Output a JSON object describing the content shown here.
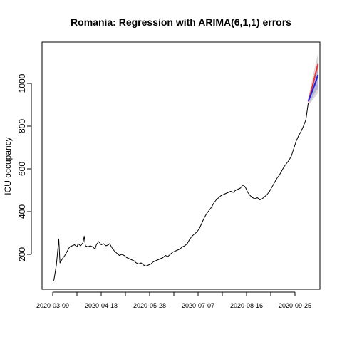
{
  "chart_data": {
    "type": "line",
    "title": "Romania: Regression with ARIMA(6,1,1) errors",
    "xlabel": "",
    "ylabel": "ICU occupancy",
    "x_tick_labels": [
      "2020-03-09",
      "2020-04-18",
      "2020-05-28",
      "2020-07-07",
      "2020-08-16",
      "2020-09-25"
    ],
    "y_ticks": [
      200,
      400,
      600,
      800,
      1000
    ],
    "xlim": [
      "2020-03-09",
      "2020-10-06"
    ],
    "ylim": [
      70,
      1140
    ],
    "grid": false,
    "legend": "none",
    "series": [
      {
        "color": "#000000",
        "points": [
          [
            "2020-03-09",
            75
          ],
          [
            "2020-03-10",
            80
          ],
          [
            "2020-03-12",
            150
          ],
          [
            "2020-03-13",
            210
          ],
          [
            "2020-03-14",
            270
          ],
          [
            "2020-03-15",
            160
          ],
          [
            "2020-03-17",
            180
          ],
          [
            "2020-03-19",
            195
          ],
          [
            "2020-03-21",
            215
          ],
          [
            "2020-03-23",
            235
          ],
          [
            "2020-03-25",
            240
          ],
          [
            "2020-03-27",
            245
          ],
          [
            "2020-03-29",
            235
          ],
          [
            "2020-03-30",
            250
          ],
          [
            "2020-04-01",
            240
          ],
          [
            "2020-04-03",
            255
          ],
          [
            "2020-04-04",
            285
          ],
          [
            "2020-04-05",
            240
          ],
          [
            "2020-04-07",
            235
          ],
          [
            "2020-04-09",
            240
          ],
          [
            "2020-04-11",
            235
          ],
          [
            "2020-04-13",
            225
          ],
          [
            "2020-04-14",
            245
          ],
          [
            "2020-04-16",
            260
          ],
          [
            "2020-04-18",
            245
          ],
          [
            "2020-04-20",
            250
          ],
          [
            "2020-04-22",
            240
          ],
          [
            "2020-04-24",
            245
          ],
          [
            "2020-04-25",
            250
          ],
          [
            "2020-04-27",
            230
          ],
          [
            "2020-04-29",
            215
          ],
          [
            "2020-05-01",
            205
          ],
          [
            "2020-05-03",
            195
          ],
          [
            "2020-05-05",
            200
          ],
          [
            "2020-05-07",
            195
          ],
          [
            "2020-05-09",
            185
          ],
          [
            "2020-05-11",
            180
          ],
          [
            "2020-05-13",
            175
          ],
          [
            "2020-05-15",
            170
          ],
          [
            "2020-05-17",
            160
          ],
          [
            "2020-05-19",
            155
          ],
          [
            "2020-05-21",
            160
          ],
          [
            "2020-05-23",
            150
          ],
          [
            "2020-05-25",
            145
          ],
          [
            "2020-05-27",
            150
          ],
          [
            "2020-05-29",
            155
          ],
          [
            "2020-05-31",
            165
          ],
          [
            "2020-06-02",
            170
          ],
          [
            "2020-06-04",
            175
          ],
          [
            "2020-06-06",
            180
          ],
          [
            "2020-06-08",
            185
          ],
          [
            "2020-06-10",
            195
          ],
          [
            "2020-06-12",
            190
          ],
          [
            "2020-06-14",
            200
          ],
          [
            "2020-06-16",
            210
          ],
          [
            "2020-06-18",
            215
          ],
          [
            "2020-06-20",
            220
          ],
          [
            "2020-06-22",
            225
          ],
          [
            "2020-06-24",
            235
          ],
          [
            "2020-06-26",
            240
          ],
          [
            "2020-06-28",
            250
          ],
          [
            "2020-06-30",
            270
          ],
          [
            "2020-07-02",
            285
          ],
          [
            "2020-07-04",
            295
          ],
          [
            "2020-07-06",
            305
          ],
          [
            "2020-07-08",
            320
          ],
          [
            "2020-07-10",
            345
          ],
          [
            "2020-07-12",
            370
          ],
          [
            "2020-07-14",
            390
          ],
          [
            "2020-07-16",
            405
          ],
          [
            "2020-07-18",
            420
          ],
          [
            "2020-07-20",
            440
          ],
          [
            "2020-07-22",
            455
          ],
          [
            "2020-07-24",
            465
          ],
          [
            "2020-07-26",
            475
          ],
          [
            "2020-07-28",
            480
          ],
          [
            "2020-07-30",
            485
          ],
          [
            "2020-08-01",
            490
          ],
          [
            "2020-08-03",
            495
          ],
          [
            "2020-08-05",
            490
          ],
          [
            "2020-08-07",
            500
          ],
          [
            "2020-08-09",
            505
          ],
          [
            "2020-08-11",
            510
          ],
          [
            "2020-08-13",
            525
          ],
          [
            "2020-08-15",
            515
          ],
          [
            "2020-08-17",
            490
          ],
          [
            "2020-08-19",
            475
          ],
          [
            "2020-08-21",
            465
          ],
          [
            "2020-08-23",
            460
          ],
          [
            "2020-08-25",
            465
          ],
          [
            "2020-08-27",
            455
          ],
          [
            "2020-08-29",
            460
          ],
          [
            "2020-08-31",
            470
          ],
          [
            "2020-09-02",
            480
          ],
          [
            "2020-09-04",
            495
          ],
          [
            "2020-09-06",
            515
          ],
          [
            "2020-09-08",
            535
          ],
          [
            "2020-09-10",
            555
          ],
          [
            "2020-09-12",
            570
          ],
          [
            "2020-09-14",
            590
          ],
          [
            "2020-09-16",
            610
          ],
          [
            "2020-09-18",
            625
          ],
          [
            "2020-09-20",
            640
          ],
          [
            "2020-09-22",
            660
          ],
          [
            "2020-09-24",
            695
          ],
          [
            "2020-09-26",
            730
          ],
          [
            "2020-09-28",
            755
          ],
          [
            "2020-09-30",
            775
          ],
          [
            "2020-10-02",
            800
          ],
          [
            "2020-10-04",
            830
          ],
          [
            "2020-10-05",
            870
          ],
          [
            "2020-10-06",
            910
          ]
        ]
      },
      {
        "color": "#ee3333",
        "points": [
          [
            "2020-10-06",
            915
          ],
          [
            "2020-10-08",
            955
          ],
          [
            "2020-10-10",
            1000
          ],
          [
            "2020-10-12",
            1045
          ],
          [
            "2020-10-14",
            1090
          ]
        ]
      },
      {
        "color": "#2222dd",
        "points": [
          [
            "2020-10-06",
            918
          ],
          [
            "2020-10-08",
            945
          ],
          [
            "2020-10-10",
            975
          ],
          [
            "2020-10-12",
            1005
          ],
          [
            "2020-10-14",
            1040
          ]
        ]
      }
    ],
    "bands": [
      {
        "color": "#cccccc",
        "x": [
          "2020-10-06",
          "2020-10-08",
          "2020-10-10",
          "2020-10-12",
          "2020-10-14"
        ],
        "lower": [
          900,
          910,
          925,
          940,
          955
        ],
        "upper": [
          935,
          985,
          1040,
          1090,
          1140
        ]
      },
      {
        "color": "#aaaadd",
        "x": [
          "2020-10-06",
          "2020-10-08",
          "2020-10-10",
          "2020-10-12",
          "2020-10-14"
        ],
        "lower": [
          905,
          920,
          940,
          960,
          975
        ],
        "upper": [
          930,
          970,
          1015,
          1060,
          1105
        ]
      }
    ]
  }
}
